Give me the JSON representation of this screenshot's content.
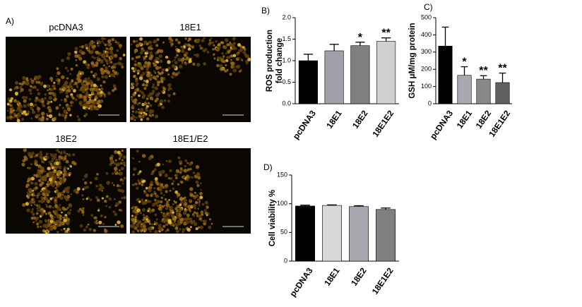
{
  "images": {
    "label": "A)",
    "captions": [
      "pcDNA3",
      "18E1",
      "18E2",
      "18E1/E2"
    ]
  },
  "chart_data": [
    {
      "type": "bar",
      "label": "B)",
      "ylabel": [
        "ROS production",
        "fold change"
      ],
      "categories": [
        "pcDNA3",
        "18E1",
        "18E2",
        "18E1E2"
      ],
      "values": [
        1.0,
        1.23,
        1.35,
        1.45
      ],
      "errors": [
        0.15,
        0.15,
        0.08,
        0.08
      ],
      "colors": [
        "#000000",
        "#a0a0a8",
        "#808080",
        "#d0d0d0"
      ],
      "annotations": [
        null,
        null,
        "*",
        "**"
      ],
      "ylim": [
        0,
        2.0
      ],
      "yticks": [
        {
          "value": 0,
          "label": "0.0"
        },
        0.5,
        {
          "value": 1,
          "label": "1.0"
        },
        1.5,
        {
          "value": 2,
          "label": "2.0"
        }
      ]
    },
    {
      "type": "bar",
      "label": "C)",
      "ylabel": [
        "GSH μM/mg protein"
      ],
      "categories": [
        "pcDNA3",
        "18E1",
        "18E2",
        "18E1E2"
      ],
      "values": [
        335,
        165,
        143,
        123
      ],
      "errors": [
        110,
        50,
        20,
        55
      ],
      "colors": [
        "#000000",
        "#a8a8b0",
        "#888888",
        "#606060"
      ],
      "annotations": [
        null,
        "*",
        "**",
        "**"
      ],
      "ylim": [
        0,
        500
      ],
      "yticks": [
        0,
        100,
        200,
        300,
        400,
        500
      ]
    },
    {
      "type": "bar",
      "label": "D)",
      "ylabel": [
        "Cell viability %"
      ],
      "categories": [
        "pcDNA3",
        "18E1",
        "18E2",
        "18E1E2"
      ],
      "values": [
        96,
        97,
        95,
        90
      ],
      "errors": [
        1.5,
        1,
        1.5,
        2.5
      ],
      "colors": [
        "#000000",
        "#d8d8d8",
        "#a8a8b0",
        "#808080"
      ],
      "annotations": [
        null,
        null,
        null,
        null
      ],
      "ylim": [
        0,
        150
      ],
      "yticks": [
        0,
        50,
        100,
        150
      ]
    }
  ]
}
